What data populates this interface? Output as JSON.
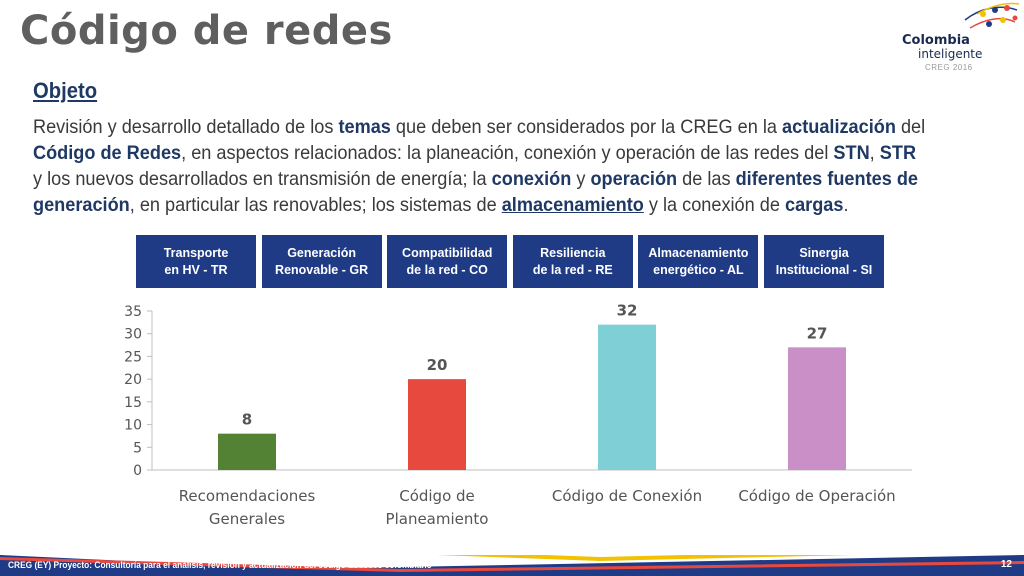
{
  "slide": {
    "title": "Código de redes",
    "subtitle": "Objeto",
    "logo": {
      "line1": "Colombia",
      "line2": "inteligente",
      "line3": "CREG 2016"
    },
    "description": [
      {
        "t": "Revisión y desarrollo detallado de los "
      },
      {
        "t": "temas",
        "b": true
      },
      {
        "t": " que deben ser considerados por la CREG en la "
      },
      {
        "t": "actualización",
        "b": true
      },
      {
        "t": " del "
      },
      {
        "t": "Código de Redes",
        "b": true
      },
      {
        "t": ", en aspectos relacionados: la planeación, conexión y operación de las redes del "
      },
      {
        "t": "STN",
        "b": true
      },
      {
        "t": ", "
      },
      {
        "t": "STR",
        "b": true
      },
      {
        "t": " y los nuevos desarrollados en transmisión de energía; la "
      },
      {
        "t": "conexión",
        "b": true
      },
      {
        "t": " y "
      },
      {
        "t": "operación",
        "b": true
      },
      {
        "t": " de las "
      },
      {
        "t": "diferentes fuentes de generación",
        "b": true
      },
      {
        "t": ", en particular las renovables; los sistemas de "
      },
      {
        "t": "almacenamiento",
        "b": true,
        "u": true
      },
      {
        "t": " y la conexión de "
      },
      {
        "t": "cargas",
        "b": true
      },
      {
        "t": "."
      }
    ],
    "themes": [
      "Transporte\nen HV - TR",
      "Generación\nRenovable - GR",
      "Compatibilidad\nde la red - CO",
      "Resiliencia\nde la red - RE",
      "Almacenamiento\nenergético - AL",
      "Sinergia\nInstitucional - SI"
    ],
    "footer": {
      "text": "CREG (EY) Proyecto: Consultoría para el análisis, revisión y actualización del código de redes colombiano",
      "page": "12"
    },
    "colors": {
      "navy": "#1f3b86",
      "title": "#5f5f5f",
      "footer": "#1f3b86"
    }
  },
  "chart_data": {
    "type": "bar",
    "categories": [
      [
        "Recomendaciones",
        "Generales"
      ],
      [
        "Código de",
        "Planeamiento"
      ],
      [
        "Código de Conexión"
      ],
      [
        "Código de Operación"
      ]
    ],
    "values": [
      8,
      20,
      32,
      27
    ],
    "colors": [
      "#548235",
      "#e8493f",
      "#7fcfd6",
      "#c98fc6"
    ],
    "yticks": [
      0,
      5,
      10,
      15,
      20,
      25,
      30,
      35
    ],
    "ylim": [
      0,
      35
    ],
    "grid": false,
    "data_labels": true
  }
}
